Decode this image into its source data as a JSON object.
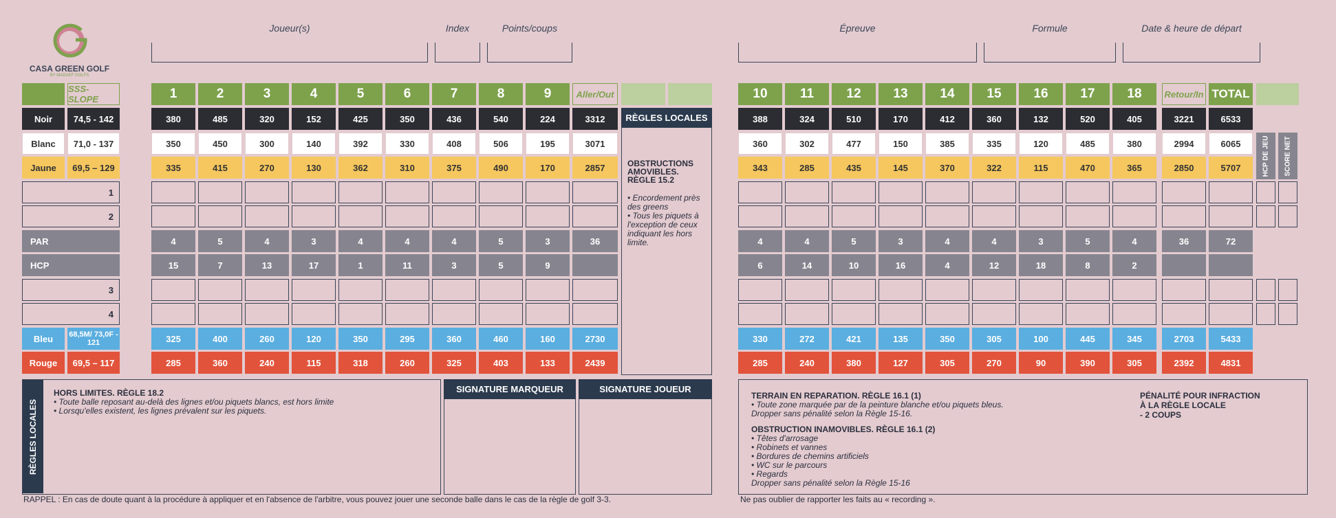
{
  "logo": {
    "name": "CASA GREEN GOLF",
    "sub": "BY MADAEF GOLFS",
    "brand_colors": [
      "#c8697f",
      "#7ea24c"
    ]
  },
  "top_fields": {
    "joueurs": "Joueur(s)",
    "index": "Index",
    "points": "Points/coups",
    "epreuve": "Épreuve",
    "formule": "Formule",
    "date": "Date & heure de départ"
  },
  "header": {
    "sss": "SSS-SLOPE",
    "front_holes": [
      "1",
      "2",
      "3",
      "4",
      "5",
      "6",
      "7",
      "8",
      "9"
    ],
    "aller": "Aller/Out",
    "back_holes": [
      "10",
      "11",
      "12",
      "13",
      "14",
      "15",
      "16",
      "17",
      "18"
    ],
    "retour": "Retour/In",
    "total": "TOTAL"
  },
  "tees": {
    "noir": {
      "label": "Noir",
      "sss": "74,5 - 142",
      "front": [
        "380",
        "485",
        "320",
        "152",
        "425",
        "350",
        "436",
        "540",
        "224"
      ],
      "aller": "3312",
      "back": [
        "388",
        "324",
        "510",
        "170",
        "412",
        "360",
        "132",
        "520",
        "405"
      ],
      "retour": "3221",
      "total": "6533"
    },
    "blanc": {
      "label": "Blanc",
      "sss": "71,0 - 137",
      "front": [
        "350",
        "450",
        "300",
        "140",
        "392",
        "330",
        "408",
        "506",
        "195"
      ],
      "aller": "3071",
      "back": [
        "360",
        "302",
        "477",
        "150",
        "385",
        "335",
        "120",
        "485",
        "380"
      ],
      "retour": "2994",
      "total": "6065"
    },
    "jaune": {
      "label": "Jaune",
      "sss": "69,5 – 129",
      "front": [
        "335",
        "415",
        "270",
        "130",
        "362",
        "310",
        "375",
        "490",
        "170"
      ],
      "aller": "2857",
      "back": [
        "343",
        "285",
        "435",
        "145",
        "370",
        "322",
        "115",
        "470",
        "365"
      ],
      "retour": "2850",
      "total": "5707"
    },
    "bleu": {
      "label": "Bleu",
      "sss": "68,5M/ 73,0F - 121",
      "front": [
        "325",
        "400",
        "260",
        "120",
        "350",
        "295",
        "360",
        "460",
        "160"
      ],
      "aller": "2730",
      "back": [
        "330",
        "272",
        "421",
        "135",
        "350",
        "305",
        "100",
        "445",
        "345"
      ],
      "retour": "2703",
      "total": "5433"
    },
    "rouge": {
      "label": "Rouge",
      "sss": "69,5 – 117",
      "front": [
        "285",
        "360",
        "240",
        "115",
        "318",
        "260",
        "325",
        "403",
        "133"
      ],
      "aller": "2439",
      "back": [
        "285",
        "240",
        "380",
        "127",
        "305",
        "270",
        "90",
        "390",
        "305"
      ],
      "retour": "2392",
      "total": "4831"
    }
  },
  "par": {
    "label": "PAR",
    "front": [
      "4",
      "5",
      "4",
      "3",
      "4",
      "4",
      "4",
      "5",
      "3"
    ],
    "aller": "36",
    "back": [
      "4",
      "4",
      "5",
      "3",
      "4",
      "4",
      "3",
      "5",
      "4"
    ],
    "retour": "36",
    "total": "72"
  },
  "hcp": {
    "label": "HCP",
    "front": [
      "15",
      "7",
      "13",
      "17",
      "1",
      "11",
      "3",
      "5",
      "9"
    ],
    "back": [
      "6",
      "14",
      "10",
      "16",
      "4",
      "12",
      "18",
      "8",
      "2"
    ]
  },
  "player_rows": [
    "1",
    "2",
    "3",
    "4"
  ],
  "vertical_labels": {
    "hcp_jeu": "HCP DE JEU",
    "score_net": "SCORE NET",
    "regles_side": "RÈGLES LOCALES"
  },
  "regles_locales_box": {
    "title": "RÈGLES LOCALES",
    "heading": "OBSTRUCTIONS AMOVIBLES. RÈGLE 15.2",
    "items": [
      "• Encordement près des greens",
      "• Tous les piquets à l'exception de ceux indiquant les hors limite."
    ]
  },
  "hors_limites": {
    "title": "HORS LIMITES. RÈGLE 18.2",
    "items": [
      "• Toute balle reposant au-delà des lignes et/ou piquets blancs, est hors limite",
      "• Lorsqu'elles existent, les lignes prévalent sur les piquets."
    ]
  },
  "signatures": {
    "marqueur": "SIGNATURE MARQUEUR",
    "joueur": "SIGNATURE JOUEUR"
  },
  "right_rules": {
    "terrain_title": "TERRAIN EN REPARATION. RÈGLE 16.1 (1)",
    "terrain_items": [
      "• Toute zone marquée par de la peinture blanche et/ou piquets bleus.",
      "Dropper sans pénalité selon la Règle 15-16."
    ],
    "obstruction_title": "OBSTRUCTION INAMOVIBLES. RÈGLE 16.1 (2)",
    "obstruction_items": [
      "• Têtes d'arrosage",
      "• Robinets et vannes",
      "• Bordures de chemins artificiels",
      "• WC sur le parcours",
      "• Regards",
      "Dropper sans pénalité selon la Règle 15-16"
    ],
    "penalite": [
      "PÉNALITÉ POUR INFRACTION",
      "À LA RÈGLE LOCALE",
      "- 2 COUPS"
    ]
  },
  "footer": {
    "rappel": "RAPPEL : En cas de doute quant à la procédure à appliquer et en l'absence de l'arbitre, vous pouvez jouer une seconde balle dans le cas de la règle de golf 3-3.",
    "recording": "Ne pas oublier de rapporter les faits au « recording »."
  }
}
